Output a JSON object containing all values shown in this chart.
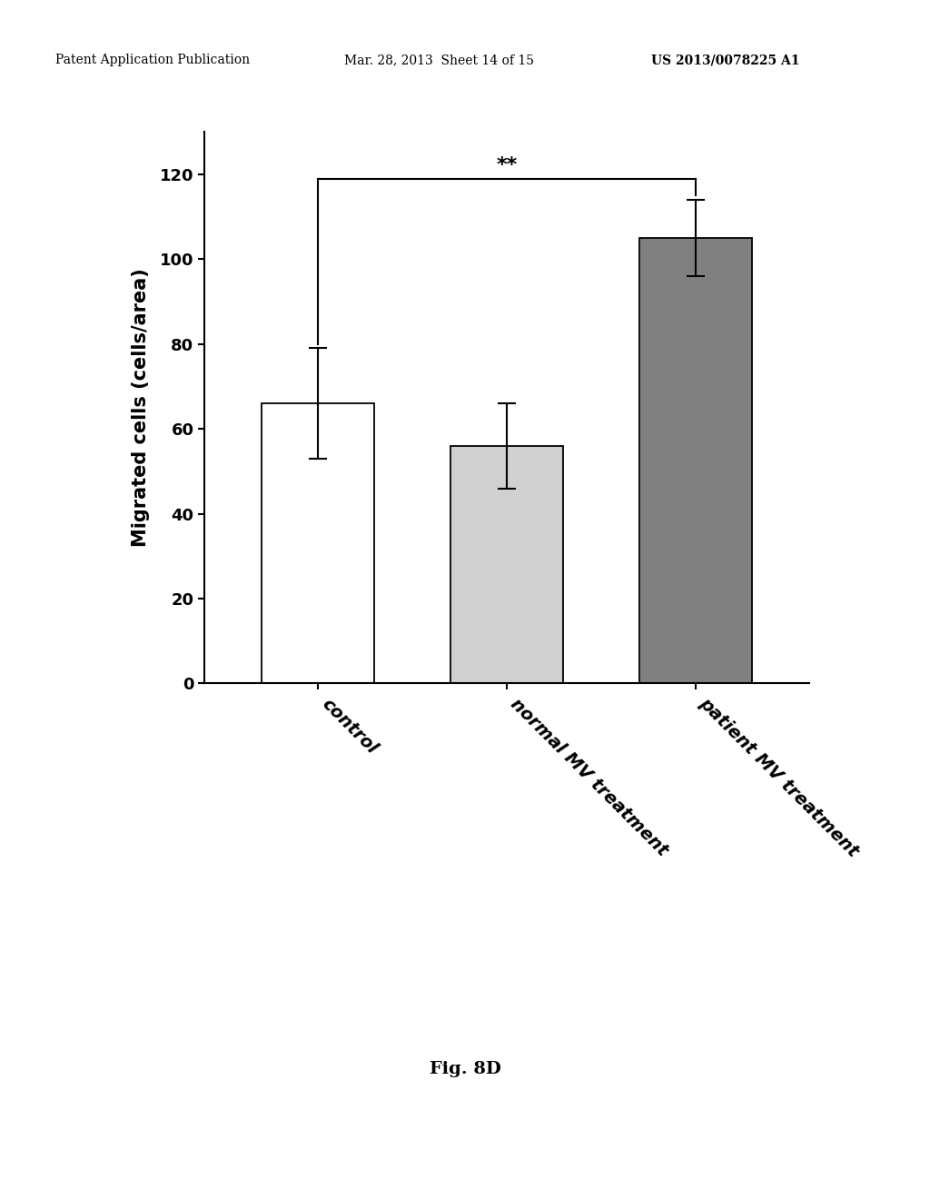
{
  "categories": [
    "control",
    "normal MV treatment",
    "patient MV treatment"
  ],
  "values": [
    66,
    56,
    105
  ],
  "errors": [
    13,
    10,
    9
  ],
  "bar_colors": [
    "#ffffff",
    "#d0d0d0",
    "#808080"
  ],
  "bar_edgecolor": "#000000",
  "ylabel": "Migrated cells (cells/area)",
  "ylim": [
    0,
    130
  ],
  "yticks": [
    0,
    20,
    40,
    60,
    80,
    100,
    120
  ],
  "significance_text": "**",
  "fig_caption": "Fig. 8D",
  "header_left": "Patent Application Publication",
  "header_center": "Mar. 28, 2013  Sheet 14 of 15",
  "header_right": "US 2013/0078225 A1",
  "background_color": "#ffffff",
  "bar_width": 0.6,
  "tick_label_rotation": -45
}
